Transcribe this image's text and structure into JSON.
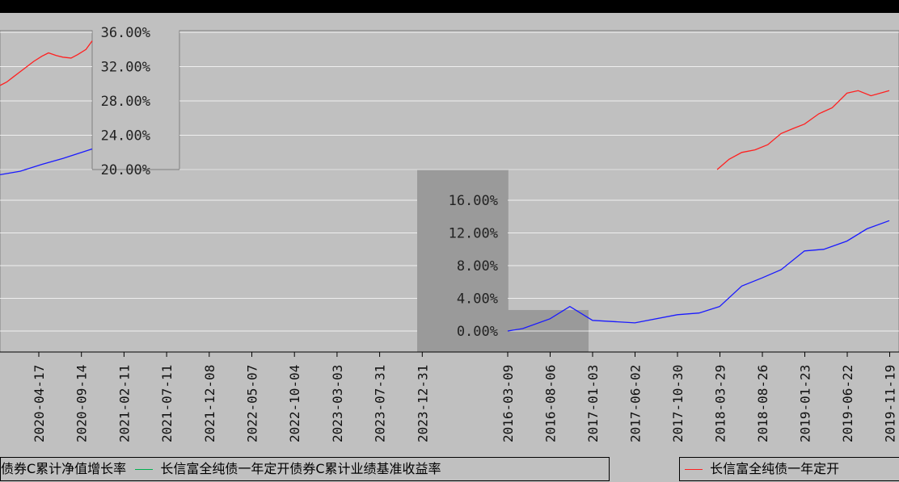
{
  "title": "",
  "colors": {
    "red": "#ff2020",
    "blue": "#1a1aff",
    "purple": "#b000b0",
    "green": "#00b050",
    "grid": "#ffffff"
  },
  "chart_data": [
    {
      "type": "line",
      "yticks": [
        "36.00%",
        "32.00%",
        "28.00%",
        "24.00%",
        "20.00%"
      ],
      "ylim": [
        20,
        36
      ],
      "xticks": [
        "2020-04-17",
        "2020-09-14",
        "2021-02-11",
        "2021-07-11",
        "2021-12-08",
        "2022-05-07",
        "2022-10-04",
        "2023-03-03",
        "2023-07-31",
        "2023-12-31"
      ],
      "series": [
        {
          "name": "长信富全纯债一年定开债券C累计净值增长率",
          "color": "#ff2020",
          "x": [
            "2020-03-06",
            "2020-03-20",
            "2020-04-03",
            "2020-04-17",
            "2020-05-01",
            "2020-05-15",
            "2020-06-01",
            "2020-06-15",
            "2020-07-01",
            "2020-07-15",
            "2020-08-01",
            "2020-08-15",
            "2020-09-01",
            "2020-09-14"
          ],
          "y": [
            29.8,
            30.2,
            30.8,
            31.4,
            32.0,
            32.6,
            33.2,
            33.6,
            33.3,
            33.1,
            33.0,
            33.4,
            34.0,
            35.0
          ]
        },
        {
          "name": "长信富全纯债一年定开债券C累计业绩基准收益率",
          "color": "#1a1aff",
          "x": [
            "2020-03-06",
            "2020-04-17",
            "2020-06-01",
            "2020-07-15",
            "2020-09-14"
          ],
          "y": [
            19.4,
            19.8,
            20.6,
            21.3,
            22.4
          ]
        }
      ]
    },
    {
      "type": "line",
      "yticks": [
        "16.00%",
        "12.00%",
        "8.00%",
        "4.00%",
        "0.00%"
      ],
      "xticks": [
        "2016-03-09",
        "2016-08-06",
        "2017-01-03",
        "2017-06-02",
        "2017-10-30",
        "2018-03-29",
        "2018-08-26",
        "2019-01-23",
        "2019-06-22",
        "2019-11-19"
      ],
      "series": [
        {
          "name": "长信富全纯债一年定开债券C累计净值增长率",
          "color": "#ff2020",
          "x": [
            "2018-03-20",
            "2018-05-01",
            "2018-06-15",
            "2018-08-01",
            "2018-09-15",
            "2018-11-01",
            "2018-12-15",
            "2019-01-23",
            "2019-03-15",
            "2019-05-01",
            "2019-06-22",
            "2019-08-01",
            "2019-09-15",
            "2019-11-19"
          ],
          "y": [
            20.0,
            21.2,
            22.0,
            22.3,
            22.9,
            24.2,
            24.8,
            25.3,
            26.5,
            27.2,
            28.9,
            29.2,
            28.6,
            29.2
          ]
        },
        {
          "name": "长信富全纯债一年定开债券C累计业绩基准收益率",
          "color": "#1a1aff",
          "x": [
            "2016-03-09",
            "2016-05-01",
            "2016-08-06",
            "2016-10-15",
            "2017-01-03",
            "2017-06-02",
            "2017-10-30",
            "2018-01-15",
            "2018-03-29",
            "2018-06-15",
            "2018-08-26",
            "2018-11-01",
            "2019-01-23",
            "2019-04-01",
            "2019-06-22",
            "2019-09-01",
            "2019-11-19"
          ],
          "y": [
            0.0,
            0.3,
            1.5,
            3.0,
            1.3,
            1.0,
            2.0,
            2.2,
            3.0,
            5.5,
            6.5,
            7.5,
            9.8,
            10.0,
            11.0,
            12.5,
            13.5
          ]
        }
      ]
    }
  ],
  "legend": {
    "left": [
      "债券C累计净值增长率",
      "长信富全纯债一年定开债券C累计业绩基准收益率"
    ],
    "right": [
      "长信富全纯债一年定开"
    ]
  }
}
